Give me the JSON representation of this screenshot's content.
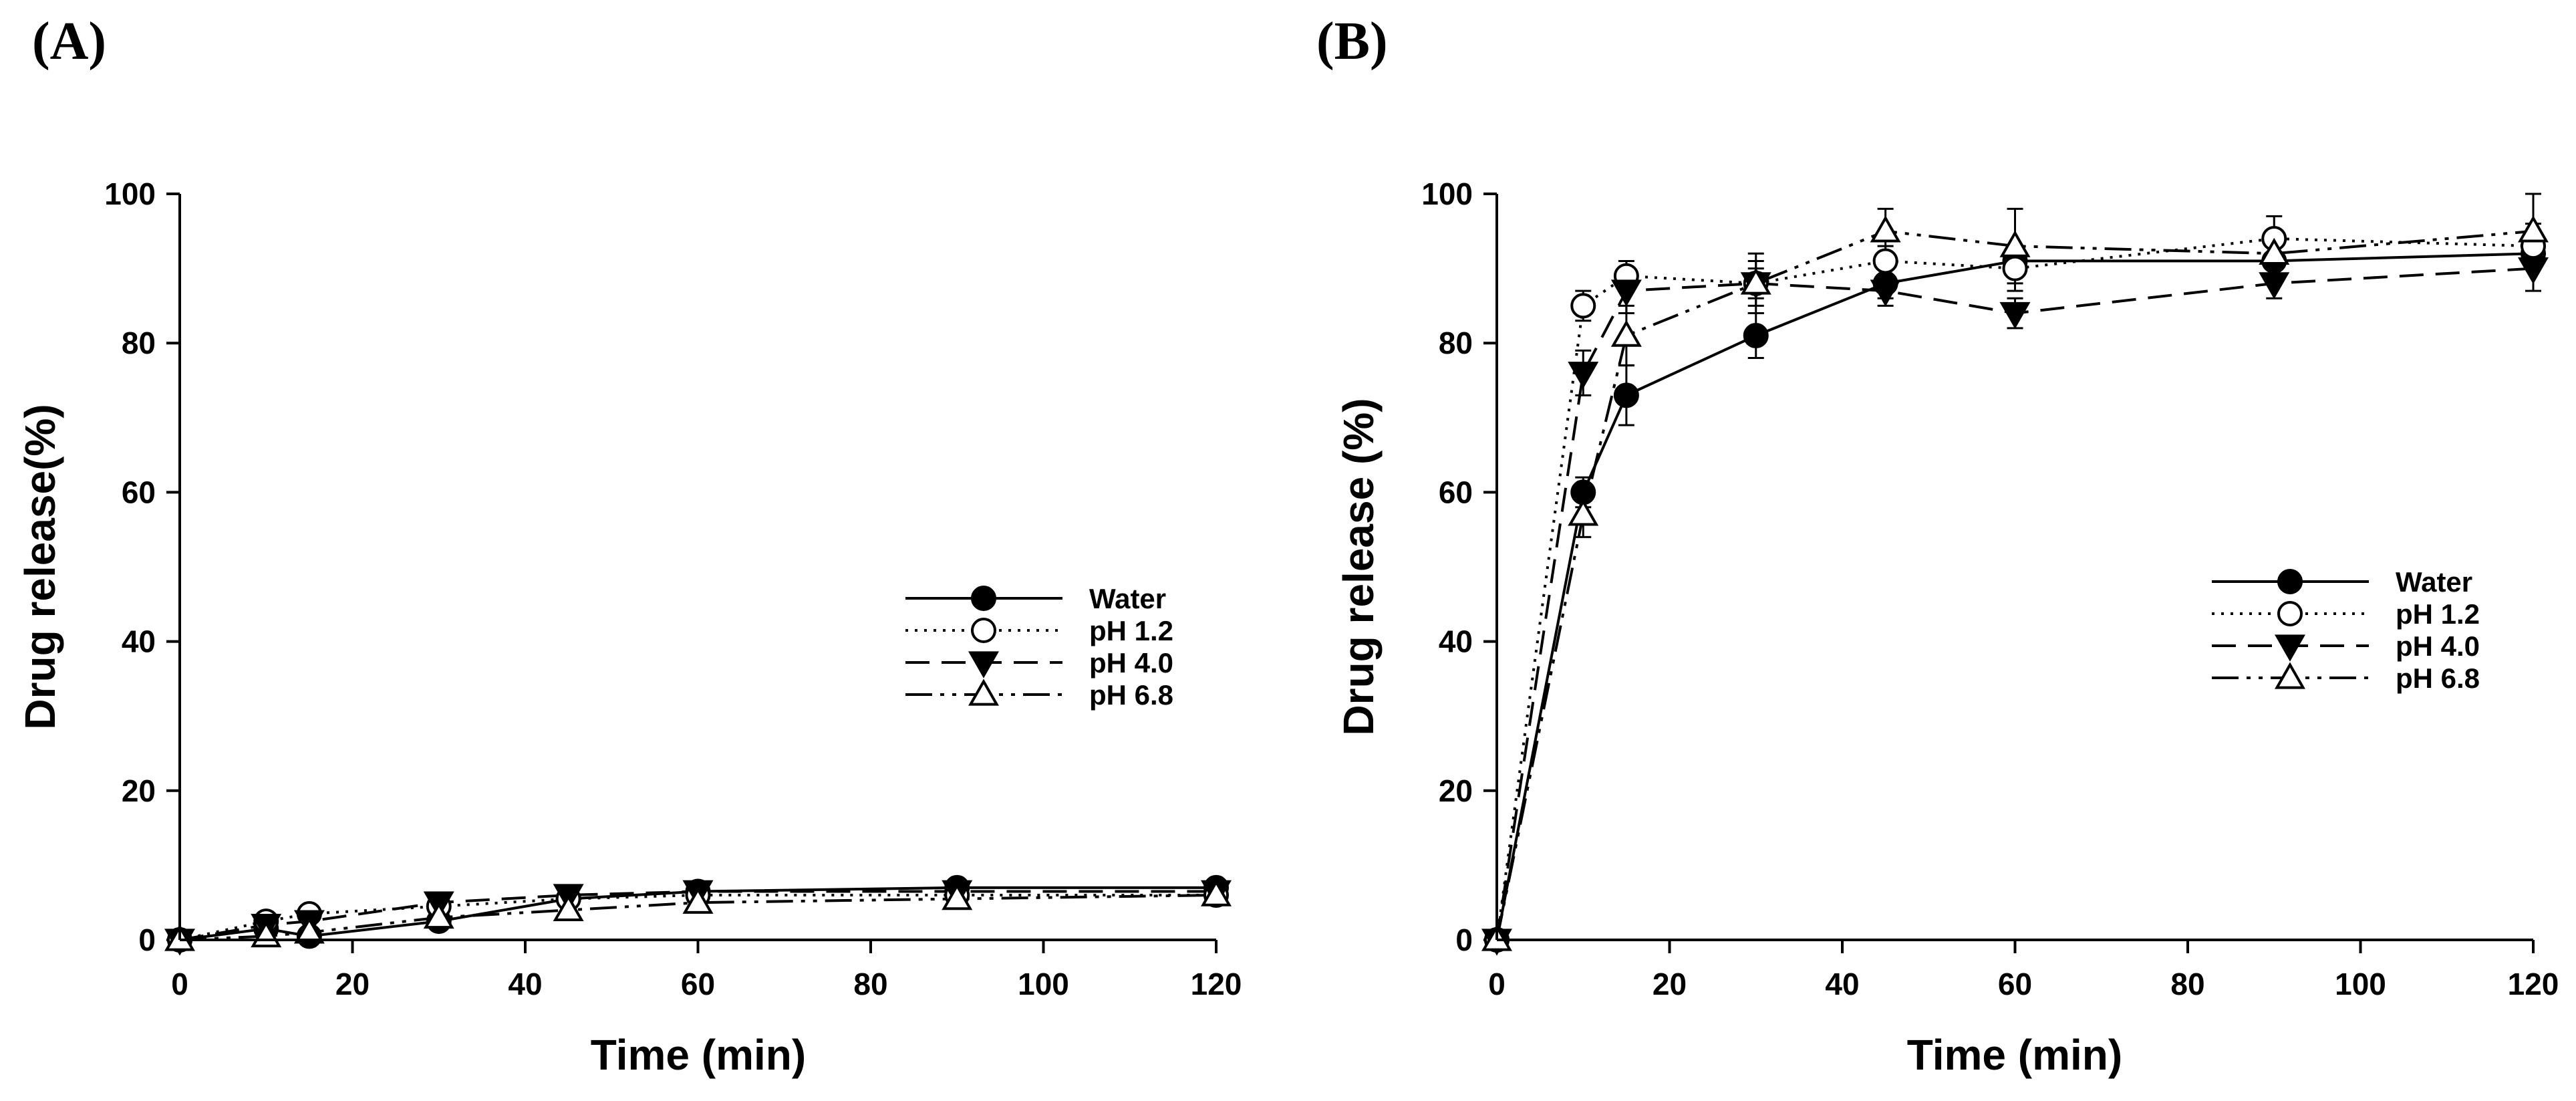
{
  "chart_data": [
    {
      "panel_label": "(A)",
      "type": "line",
      "xlabel": "Time (min)",
      "ylabel": "Drug release(%)",
      "xlim": [
        0,
        120
      ],
      "ylim": [
        0,
        100
      ],
      "xticks": [
        0,
        20,
        40,
        60,
        80,
        100,
        120
      ],
      "yticks": [
        0,
        20,
        40,
        60,
        80,
        100
      ],
      "legend_position": "center-right",
      "x": [
        0,
        10,
        15,
        30,
        45,
        60,
        90,
        120
      ],
      "series": [
        {
          "name": "Water",
          "marker": "filled-circle",
          "dash": "solid",
          "values": [
            0,
            1.5,
            0.5,
            2.5,
            5.5,
            6.5,
            7,
            7
          ],
          "errors": [
            0,
            0,
            0,
            0,
            0,
            0,
            0,
            0
          ]
        },
        {
          "name": "pH 1.2",
          "marker": "open-circle",
          "dash": "dotted",
          "values": [
            0,
            2.5,
            3.5,
            4.5,
            5.5,
            6,
            6,
            6
          ],
          "errors": [
            0,
            0,
            0,
            0,
            0,
            0,
            0,
            0
          ]
        },
        {
          "name": "pH 4.0",
          "marker": "filled-triangle-down",
          "dash": "dashed",
          "values": [
            0,
            2,
            2.5,
            5,
            6,
            6.5,
            6.5,
            6.5
          ],
          "errors": [
            0,
            0,
            0,
            0,
            0,
            0,
            0,
            0
          ]
        },
        {
          "name": "pH 6.8",
          "marker": "open-triangle-up",
          "dash": "dash-dot-dot",
          "values": [
            0,
            0.5,
            1,
            3,
            4,
            5,
            5.5,
            6
          ],
          "errors": [
            0,
            0,
            0,
            0,
            0,
            0,
            0,
            0
          ]
        }
      ]
    },
    {
      "panel_label": "(B)",
      "type": "line",
      "xlabel": "Time (min)",
      "ylabel": "Drug release (%)",
      "xlim": [
        0,
        120
      ],
      "ylim": [
        0,
        100
      ],
      "xticks": [
        0,
        20,
        40,
        60,
        80,
        100,
        120
      ],
      "yticks": [
        0,
        20,
        40,
        60,
        80,
        100
      ],
      "legend_position": "center-right",
      "x": [
        0,
        10,
        15,
        30,
        45,
        60,
        90,
        120
      ],
      "series": [
        {
          "name": "Water",
          "marker": "filled-circle",
          "dash": "solid",
          "values": [
            0,
            60,
            73,
            81,
            88,
            91,
            91,
            92
          ],
          "errors": [
            0,
            2,
            4,
            3,
            2,
            2,
            2,
            2
          ]
        },
        {
          "name": "pH 1.2",
          "marker": "open-circle",
          "dash": "dotted",
          "values": [
            0,
            85,
            89,
            88,
            91,
            90,
            94,
            93
          ],
          "errors": [
            0,
            2,
            2,
            2,
            2,
            3,
            3,
            3
          ]
        },
        {
          "name": "pH 4.0",
          "marker": "filled-triangle-down",
          "dash": "dashed",
          "values": [
            0,
            76,
            87,
            88,
            87,
            84,
            88,
            90
          ],
          "errors": [
            0,
            3,
            3,
            3,
            2,
            2,
            2,
            3
          ]
        },
        {
          "name": "pH 6.8",
          "marker": "open-triangle-up",
          "dash": "dash-dot-dot",
          "values": [
            0,
            57,
            81,
            88,
            95,
            93,
            92,
            95
          ],
          "errors": [
            0,
            3,
            4,
            4,
            3,
            5,
            2,
            5
          ]
        }
      ]
    }
  ]
}
